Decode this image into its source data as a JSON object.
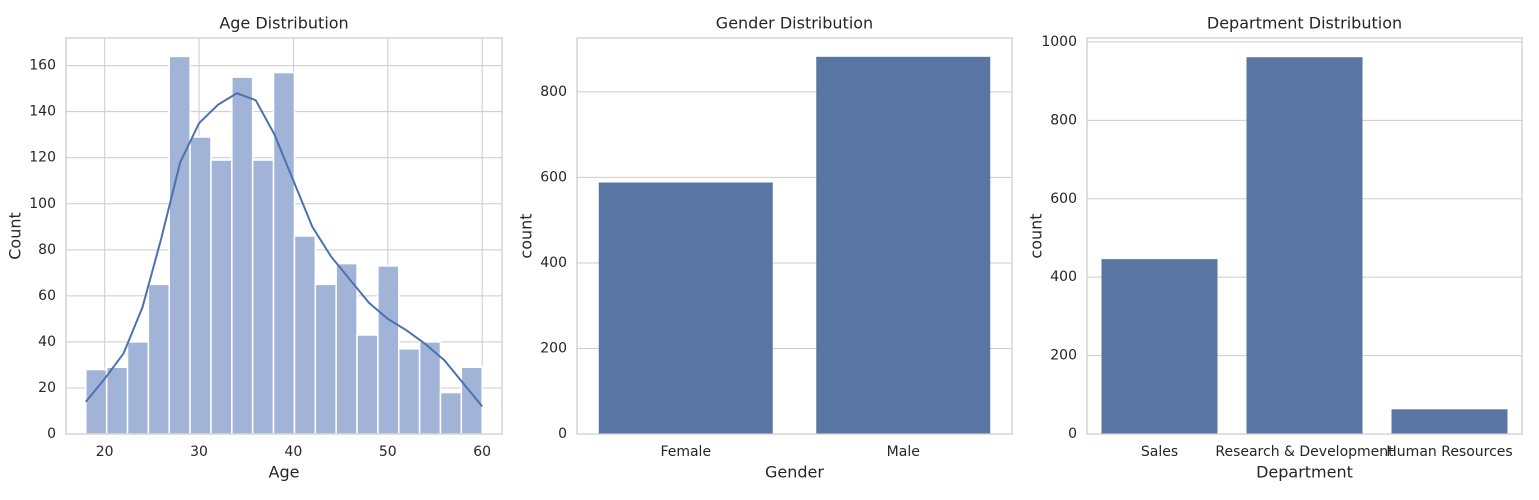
{
  "chart_data": [
    {
      "type": "histogram",
      "title": "Age Distribution",
      "x_label": "Age",
      "y_label": "Count",
      "bins": [
        18,
        20.21,
        22.42,
        24.63,
        26.84,
        29.05,
        31.26,
        33.47,
        35.68,
        37.89,
        40.11,
        42.32,
        44.53,
        46.74,
        48.95,
        51.16,
        53.37,
        55.58,
        57.79,
        60
      ],
      "values": [
        28,
        29,
        40,
        65,
        164,
        129,
        119,
        155,
        119,
        157,
        86,
        65,
        74,
        43,
        73,
        37,
        40,
        18,
        29
      ],
      "color": "#a1b4d8",
      "line_color": "#4c72b0",
      "kde": {
        "x": [
          18,
          20,
          22,
          24,
          26,
          28,
          30,
          32,
          34,
          36,
          38,
          40,
          42,
          44,
          46,
          48,
          50,
          52,
          54,
          56,
          58,
          60
        ],
        "y": [
          14,
          24,
          35,
          55,
          85,
          118,
          135,
          143,
          148,
          145,
          130,
          110,
          90,
          77,
          67,
          57,
          50,
          45,
          39,
          32,
          22,
          12
        ]
      },
      "xlim": [
        15.9,
        62.1
      ],
      "xticks": [
        20,
        30,
        40,
        50,
        60
      ],
      "ylim": [
        0,
        172
      ],
      "yticks": [
        0,
        20,
        40,
        60,
        80,
        100,
        120,
        140,
        160
      ],
      "grid": true
    },
    {
      "type": "bar",
      "title": "Gender Distribution",
      "x_label": "Gender",
      "y_label": "count",
      "categories": [
        "Female",
        "Male"
      ],
      "values": [
        588,
        882
      ],
      "color": "#5875a4",
      "ylim": [
        0,
        926
      ],
      "yticks": [
        0,
        200,
        400,
        600,
        800
      ],
      "grid": true
    },
    {
      "type": "bar",
      "title": "Department Distribution",
      "x_label": "Department",
      "y_label": "count",
      "categories": [
        "Sales",
        "Research & Development",
        "Human Resources"
      ],
      "values": [
        446,
        961,
        63
      ],
      "color": "#5875a4",
      "ylim": [
        0,
        1010
      ],
      "yticks": [
        0,
        200,
        400,
        600,
        800,
        1000
      ],
      "grid": true
    }
  ]
}
